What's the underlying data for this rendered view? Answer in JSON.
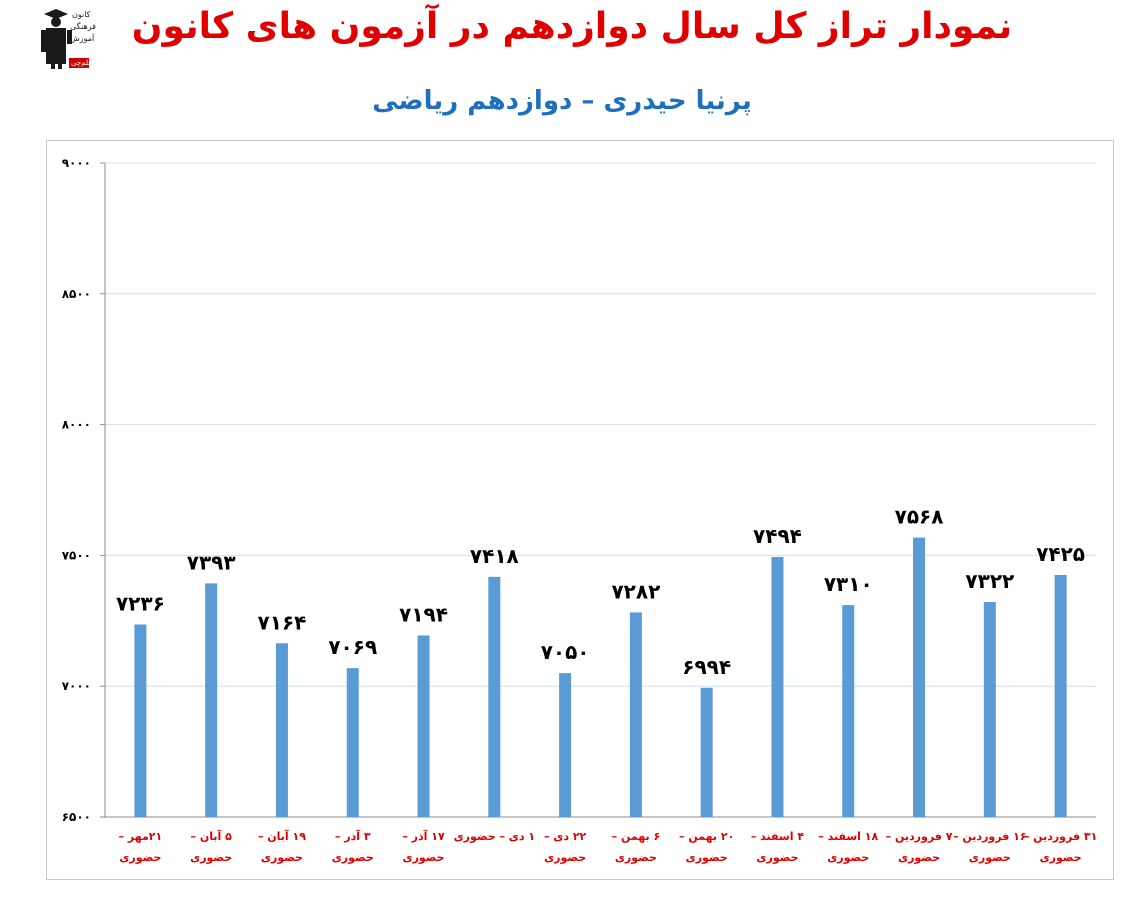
{
  "header": {
    "title": "نمودار تراز کل سال دوازدهم در آزمون های کانون",
    "subtitle": "پرنیا حیدری – دوازدهم ریاضی",
    "logo_lines": [
      "کانون",
      "فرهنگی",
      "آموزش"
    ],
    "logo_badge": "قلم‌چی"
  },
  "colors": {
    "bar": "#5b9bd5",
    "title": "#e00000",
    "subtitle": "#1f6fbf",
    "category_label": "#e00000"
  },
  "chart_data": {
    "type": "bar",
    "title": "نمودار تراز کل سال دوازدهم در آزمون های کانون",
    "subtitle": "پرنیا حیدری – دوازدهم ریاضی",
    "ylim": [
      6500,
      9000
    ],
    "yticks": [
      6500,
      7000,
      7500,
      8000,
      8500,
      9000
    ],
    "ytick_labels": [
      "۶۵۰۰",
      "۷۰۰۰",
      "۷۵۰۰",
      "۸۰۰۰",
      "۸۵۰۰",
      "۹۰۰۰"
    ],
    "grid": true,
    "categories": [
      [
        "۲۱مهر –",
        "حضوری"
      ],
      [
        "۵ آبان –",
        "حضوری"
      ],
      [
        "۱۹ آبان –",
        "حضوری"
      ],
      [
        "۳ آذر –",
        "حضوری"
      ],
      [
        "۱۷ آذر –",
        "حضوری"
      ],
      [
        "۱ دی – حضوری"
      ],
      [
        "۲۲ دی –",
        "حضوری"
      ],
      [
        "۶ بهمن –",
        "حضوری"
      ],
      [
        "۲۰ بهمن –",
        "حضوری"
      ],
      [
        "۴ اسفند –",
        "حضوری"
      ],
      [
        "۱۸ اسفند –",
        "حضوری"
      ],
      [
        "۷ فروردین –",
        "حضوری"
      ],
      [
        "۱۶ فروردین –",
        "حضوری"
      ],
      [
        "۳۱ فروردین –",
        "حضوری"
      ]
    ],
    "values": [
      7236,
      7393,
      7164,
      7069,
      7194,
      7418,
      7050,
      7282,
      6994,
      7494,
      7310,
      7568,
      7322,
      7425
    ],
    "data_labels": [
      "۷۲۳۶",
      "۷۳۹۳",
      "۷۱۶۴",
      "۷۰۶۹",
      "۷۱۹۴",
      "۷۴۱۸",
      "۷۰۵۰",
      "۷۲۸۲",
      "۶۹۹۴",
      "۷۴۹۴",
      "۷۳۱۰",
      "۷۵۶۸",
      "۷۳۲۲",
      "۷۴۲۵"
    ]
  }
}
